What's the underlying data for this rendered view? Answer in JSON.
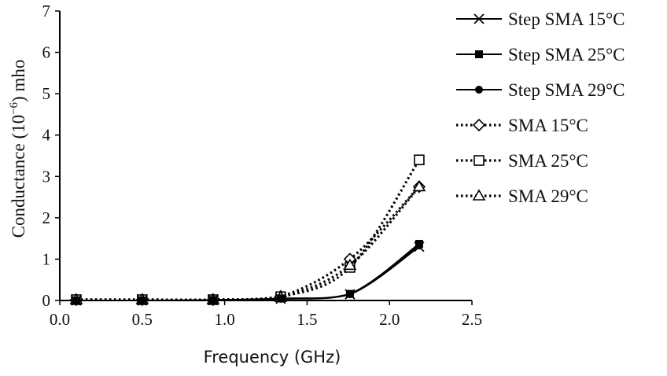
{
  "chart_data": {
    "type": "line",
    "xlabel": "Frequency (GHz)",
    "ylabel": {
      "prefix": "Conductance (10",
      "superscript": "−6",
      "suffix": ") mho"
    },
    "xlim": [
      0.0,
      2.5
    ],
    "ylim": [
      0,
      7
    ],
    "xticks": [
      "0.0",
      "0.5",
      "1.0",
      "1.5",
      "2.0",
      "2.5"
    ],
    "yticks": [
      "0",
      "1",
      "2",
      "3",
      "4",
      "5",
      "6",
      "7"
    ],
    "grid": false,
    "legend_position": "right",
    "x": [
      0.1,
      0.5,
      0.93,
      1.34,
      1.76,
      2.18
    ],
    "series": [
      {
        "name": "Step SMA 15°C",
        "style": "solid",
        "marker": "x",
        "values": [
          0.0,
          0.0,
          0.01,
          0.04,
          0.15,
          1.3
        ]
      },
      {
        "name": "Step SMA 25°C",
        "style": "solid",
        "marker": "filled-square",
        "values": [
          0.0,
          0.0,
          0.01,
          0.05,
          0.16,
          1.37
        ]
      },
      {
        "name": "Step SMA 29°C",
        "style": "solid",
        "marker": "filled-circle",
        "values": [
          0.0,
          0.0,
          0.01,
          0.04,
          0.15,
          1.33
        ]
      },
      {
        "name": "SMA 15°C",
        "style": "dotted",
        "marker": "open-diamond",
        "values": [
          0.02,
          0.02,
          0.02,
          0.1,
          1.0,
          2.75
        ]
      },
      {
        "name": "SMA 25°C",
        "style": "dotted",
        "marker": "open-square",
        "values": [
          0.02,
          0.02,
          0.02,
          0.09,
          0.8,
          3.4
        ]
      },
      {
        "name": "SMA 29°C",
        "style": "dotted",
        "marker": "open-triangle",
        "values": [
          0.02,
          0.02,
          0.02,
          0.08,
          0.85,
          2.75
        ]
      }
    ]
  }
}
